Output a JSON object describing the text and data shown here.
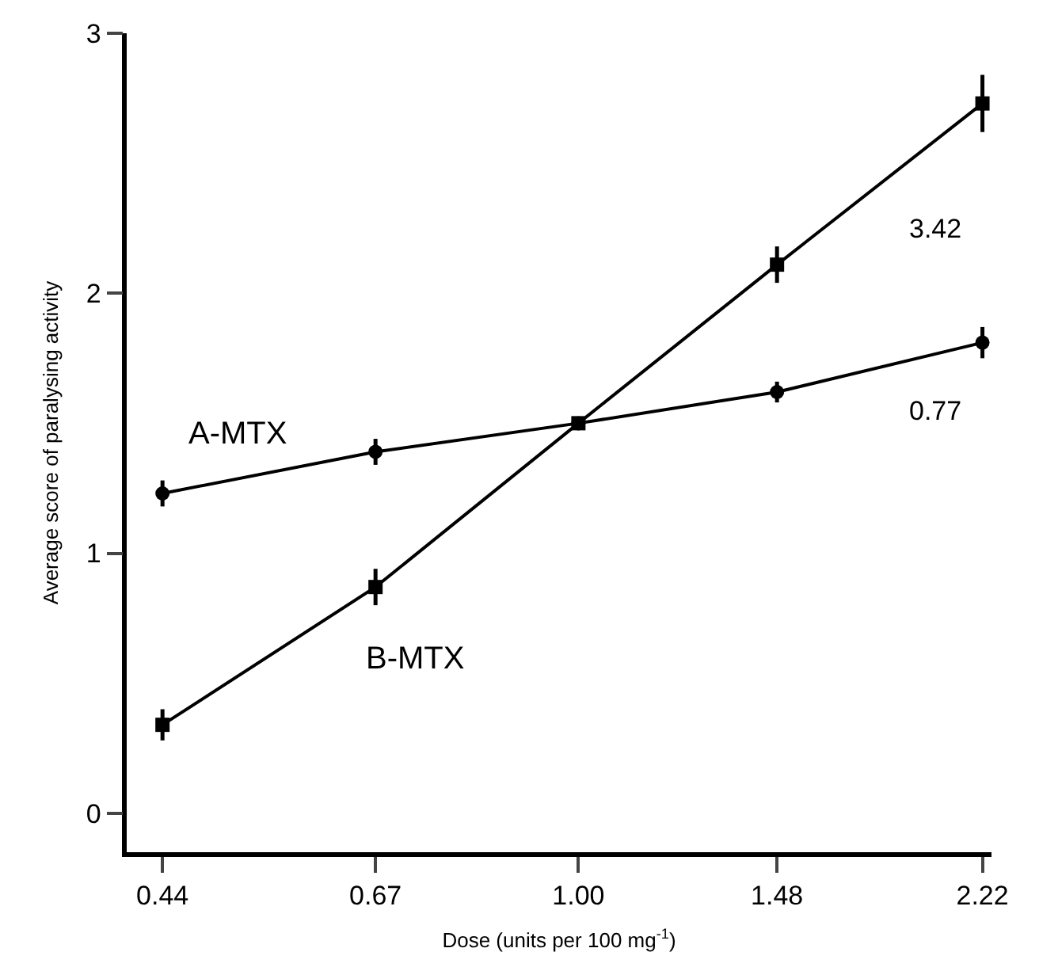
{
  "chart_data": {
    "type": "line",
    "xlabel": "Dose (units per 100 mg$^{-1}$)",
    "ylabel": "Average score of paralysing activity",
    "x": [
      0.44,
      0.67,
      1.0,
      1.48,
      2.22
    ],
    "log": "x",
    "xlim": [
      0.41,
      2.26
    ],
    "xticks": [
      {
        "value": 0.44,
        "label": "0.44"
      },
      {
        "value": 0.67,
        "label": "0.67"
      },
      {
        "value": 1.0,
        "label": "1.00"
      },
      {
        "value": 1.48,
        "label": "1.48"
      },
      {
        "value": 2.22,
        "label": "2.22"
      }
    ],
    "ylim": [
      -0.15,
      3
    ],
    "yticks": [
      0,
      1,
      2,
      3
    ],
    "legend": "left",
    "line_style": "solid",
    "series": [
      {
        "name": "A-MTX",
        "color": "#000000",
        "marker": "circle",
        "values": [
          1.23,
          1.39,
          1.5,
          1.62,
          1.81
        ],
        "errors": [
          0.05,
          0.05,
          null,
          0.04,
          0.06
        ]
      },
      {
        "name": "B-MTX",
        "color": "#000000",
        "marker": "square",
        "values": [
          0.34,
          0.87,
          1.5,
          2.11,
          2.73
        ],
        "errors": [
          0.06,
          0.07,
          null,
          0.07,
          0.11
        ]
      }
    ],
    "annotations": [
      "3.42",
      "0.77"
    ]
  }
}
